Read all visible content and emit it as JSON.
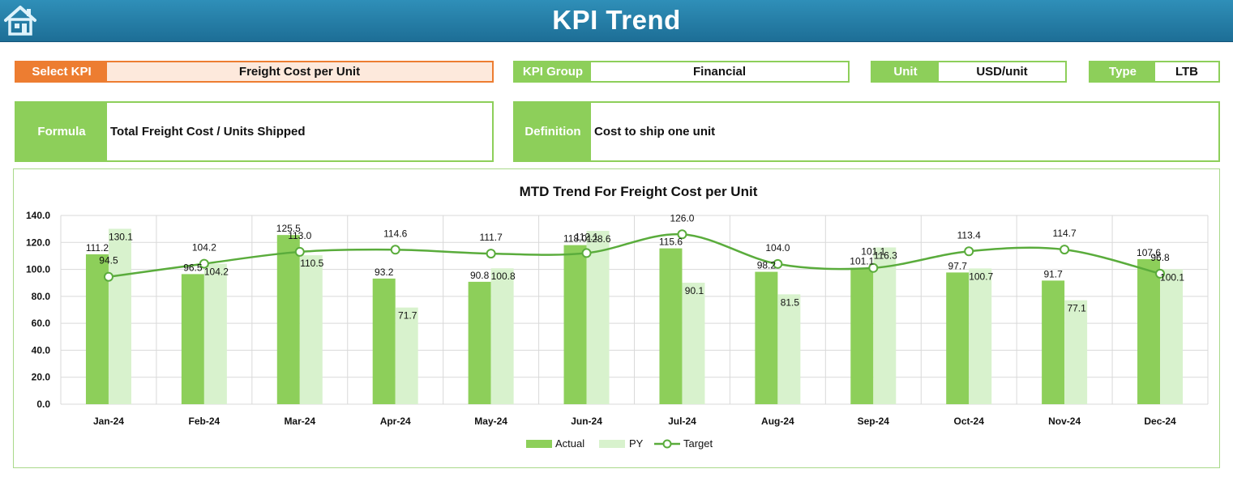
{
  "header": {
    "title": "KPI Trend",
    "home_icon": "home-icon"
  },
  "fields": {
    "select_kpi": {
      "label": "Select KPI",
      "value": "Freight Cost per Unit"
    },
    "kpi_group": {
      "label": "KPI Group",
      "value": "Financial"
    },
    "unit": {
      "label": "Unit",
      "value": "USD/unit"
    },
    "type": {
      "label": "Type",
      "value": "LTB"
    }
  },
  "formula": {
    "label": "Formula",
    "value": "Total Freight Cost / Units Shipped"
  },
  "definition": {
    "label": "Definition",
    "value": "Cost to ship one unit"
  },
  "colors": {
    "header": "#1f7aa6",
    "accent_green": "#8dcf5a",
    "accent_orange": "#ed7d31",
    "actual": "#8dcf5a",
    "py": "#d8f2cd",
    "target": "#5aac3c"
  },
  "chart_data": {
    "type": "bar",
    "title": "MTD Trend For Freight Cost per Unit",
    "categories": [
      "Jan-24",
      "Feb-24",
      "Mar-24",
      "Apr-24",
      "May-24",
      "Jun-24",
      "Jul-24",
      "Aug-24",
      "Sep-24",
      "Oct-24",
      "Nov-24",
      "Dec-24"
    ],
    "ylim": [
      0,
      140
    ],
    "yticks": [
      "0.0",
      "20.0",
      "40.0",
      "60.0",
      "80.0",
      "100.0",
      "120.0",
      "140.0"
    ],
    "grid": true,
    "legend": "bottom",
    "series": [
      {
        "name": "Actual",
        "type": "bar",
        "values": [
          111.2,
          96.5,
          125.5,
          93.2,
          90.8,
          118.0,
          115.6,
          98.2,
          101.1,
          97.7,
          91.7,
          107.6
        ]
      },
      {
        "name": "PY",
        "type": "bar",
        "values": [
          130.1,
          104.2,
          110.5,
          71.7,
          100.8,
          128.6,
          90.1,
          81.5,
          116.3,
          100.7,
          77.1,
          100.1
        ]
      },
      {
        "name": "Target",
        "type": "line",
        "values": [
          94.5,
          104.2,
          113.0,
          114.6,
          111.7,
          112.1,
          126.0,
          104.0,
          101.1,
          113.4,
          114.7,
          96.8
        ]
      }
    ]
  }
}
